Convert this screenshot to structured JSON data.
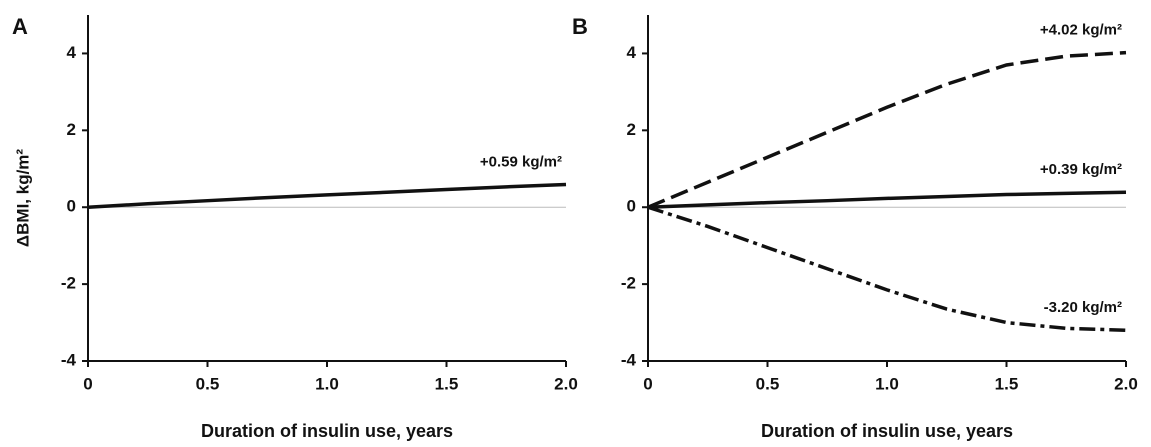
{
  "chart_data": [
    {
      "type": "line",
      "panel": "A",
      "xlabel": "Duration of insulin use, years",
      "ylabel": "ΔBMI, kg/m²",
      "x": [
        0,
        0.25,
        0.5,
        0.75,
        1.0,
        1.25,
        1.5,
        1.75,
        2.0
      ],
      "series": [
        {
          "color": "#111111",
          "dash": "solid",
          "label": "+0.59 kg/m²",
          "values": [
            0,
            0.09,
            0.17,
            0.25,
            0.32,
            0.39,
            0.46,
            0.53,
            0.59
          ]
        }
      ],
      "xlim": [
        0,
        2
      ],
      "ylim": [
        -4,
        5
      ],
      "xticks": [
        0,
        0.5,
        {
          "value": 1,
          "label": "1.0"
        },
        1.5,
        {
          "value": 2,
          "label": "2.0"
        }
      ],
      "yticks": [
        -4,
        -2,
        0,
        2,
        4
      ],
      "zero_line": true
    },
    {
      "type": "line",
      "panel": "B",
      "xlabel": "Duration of insulin use, years",
      "x": [
        0,
        0.25,
        0.5,
        0.75,
        1.0,
        1.25,
        1.5,
        1.75,
        2.0
      ],
      "series": [
        {
          "color": "#111111",
          "dash": "dashed",
          "label": "+4.02 kg/m²",
          "values": [
            0,
            0.65,
            1.3,
            1.95,
            2.6,
            3.2,
            3.7,
            3.93,
            4.02
          ]
        },
        {
          "color": "#111111",
          "dash": "solid",
          "label": "+0.39 kg/m²",
          "values": [
            0,
            0.06,
            0.12,
            0.17,
            0.23,
            0.28,
            0.33,
            0.36,
            0.39
          ]
        },
        {
          "color": "#111111",
          "dash": "dashdot",
          "label": "-3.20 kg/m²",
          "values": [
            0,
            -0.5,
            -1.05,
            -1.6,
            -2.15,
            -2.65,
            -3.0,
            -3.15,
            -3.2
          ]
        }
      ],
      "xlim": [
        0,
        2
      ],
      "ylim": [
        -4,
        5
      ],
      "xticks": [
        0,
        0.5,
        {
          "value": 1,
          "label": "1.0"
        },
        1.5,
        {
          "value": 2,
          "label": "2.0"
        }
      ],
      "yticks": [
        -4,
        -2,
        0,
        2,
        4
      ],
      "zero_line": true
    }
  ]
}
